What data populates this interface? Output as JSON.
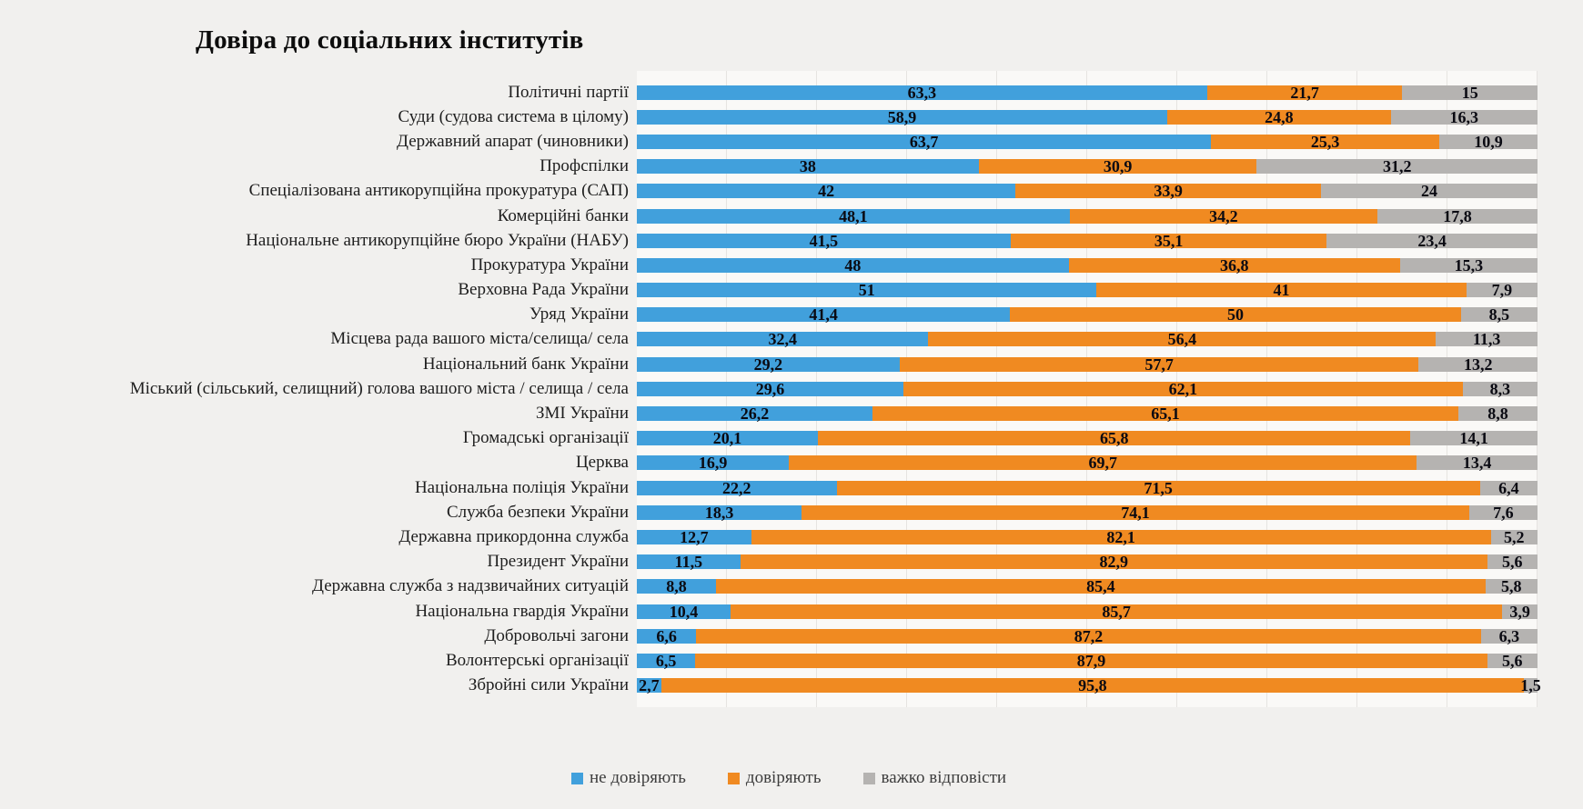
{
  "title": "Довіра до соціальних інститутів",
  "chart_data": {
    "type": "bar",
    "orientation": "horizontal-stacked",
    "xlim": [
      0,
      100
    ],
    "grid": "faint vertical gridlines every 10%",
    "legend_position": "bottom",
    "value_format": "comma decimal separator",
    "categories": [
      "Політичні партії",
      "Суди (судова система в цілому)",
      "Державний апарат (чиновники)",
      "Профспілки",
      "Спеціалізована антикорупційна прокуратура (САП)",
      "Комерційні банки",
      "Національне антикорупційне бюро України (НАБУ)",
      "Прокуратура України",
      "Верховна Рада України",
      "Уряд України",
      "Місцева рада вашого міста/селища/ села",
      "Національний банк України",
      "Міський (сільський, селищний) голова вашого міста / селища / села",
      "ЗМІ України",
      "Громадські організації",
      "Церква",
      "Національна поліція України",
      "Служба безпеки України",
      "Державна прикордонна служба",
      "Президент України",
      "Державна служба з надзвичайних ситуацій",
      "Національна гвардія України",
      "Добровольчі загони",
      "Волонтерські організації",
      "Збройні сили України"
    ],
    "series": [
      {
        "key": "ne-doviryayut",
        "name": "не довіряють",
        "color": "#41a0dc",
        "values": [
          63.3,
          58.9,
          63.7,
          38,
          42,
          48.1,
          41.5,
          48,
          51,
          41.4,
          32.4,
          29.2,
          29.6,
          26.2,
          20.1,
          16.9,
          22.2,
          18.3,
          12.7,
          11.5,
          8.8,
          10.4,
          6.6,
          6.5,
          2.7
        ],
        "labels": [
          "63,3",
          "58,9",
          "63,7",
          "38",
          "42",
          "48,1",
          "41,5",
          "48",
          "51",
          "41,4",
          "32,4",
          "29,2",
          "29,6",
          "26,2",
          "20,1",
          "16,9",
          "22,2",
          "18,3",
          "12,7",
          "11,5",
          "8,8",
          "10,4",
          "6,6",
          "6,5",
          "2,7"
        ]
      },
      {
        "key": "doviryayut",
        "name": "довіряють",
        "color": "#f08a21",
        "values": [
          21.7,
          24.8,
          25.3,
          30.9,
          33.9,
          34.2,
          35.1,
          36.8,
          41,
          50,
          56.4,
          57.7,
          62.1,
          65.1,
          65.8,
          69.7,
          71.5,
          74.1,
          82.1,
          82.9,
          85.4,
          85.7,
          87.2,
          87.9,
          95.8
        ],
        "labels": [
          "21,7",
          "24,8",
          "25,3",
          "30,9",
          "33,9",
          "34,2",
          "35,1",
          "36,8",
          "41",
          "50",
          "56,4",
          "57,7",
          "62,1",
          "65,1",
          "65,8",
          "69,7",
          "71,5",
          "74,1",
          "82,1",
          "82,9",
          "85,4",
          "85,7",
          "87,2",
          "87,9",
          "95,8"
        ]
      },
      {
        "key": "vazhko-vidpovisty",
        "name": "важко відповісти",
        "color": "#b5b3b1",
        "values": [
          15,
          16.3,
          10.9,
          31.2,
          24,
          17.8,
          23.4,
          15.3,
          7.9,
          8.5,
          11.3,
          13.2,
          8.3,
          8.8,
          14.1,
          13.4,
          6.4,
          7.6,
          5.2,
          5.6,
          5.8,
          3.9,
          6.3,
          5.6,
          1.5
        ],
        "labels": [
          "15",
          "16,3",
          "10,9",
          "31,2",
          "24",
          "17,8",
          "23,4",
          "15,3",
          "7,9",
          "8,5",
          "11,3",
          "13,2",
          "8,3",
          "8,8",
          "14,1",
          "13,4",
          "6,4",
          "7,6",
          "5,2",
          "5,6",
          "5,8",
          "3,9",
          "6,3",
          "5,6",
          "1,5"
        ]
      }
    ]
  },
  "legend": {
    "items": [
      {
        "label": "не довіряють"
      },
      {
        "label": "довіряють"
      },
      {
        "label": "важко відповісти"
      }
    ]
  }
}
